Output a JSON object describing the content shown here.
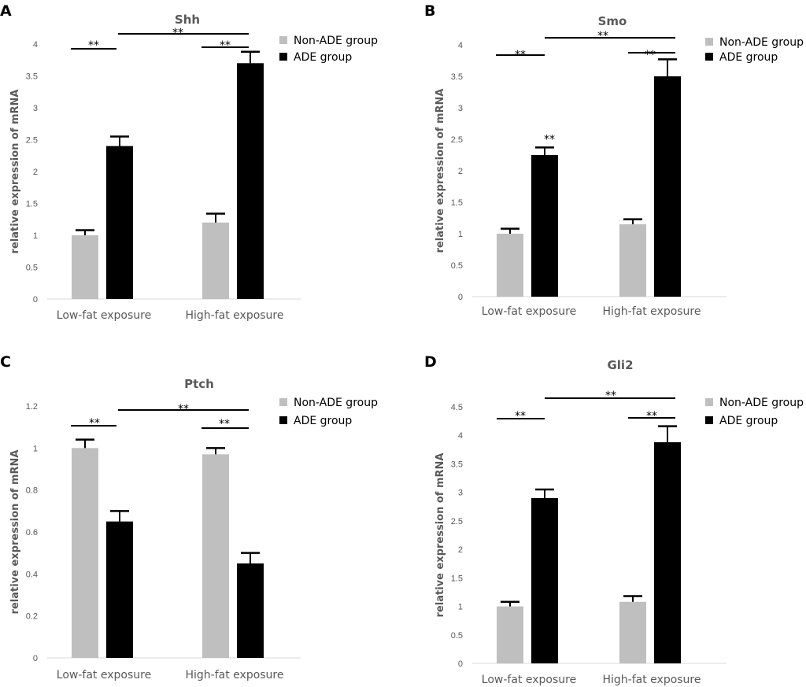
{
  "colors": {
    "non_ade": "#bfbfbf",
    "ade": "#000000",
    "text": "#595959",
    "axis": "#d9d9d9"
  },
  "chart_data": [
    {
      "type": "bar",
      "panel": "A",
      "title": "Shh",
      "ylabel": "relative expression of mRNA",
      "xlabel": "",
      "categories": [
        "Low-fat exposure",
        "High-fat exposure"
      ],
      "series": [
        {
          "name": "Non-ADE group",
          "values": [
            1.0,
            1.2
          ],
          "errors": [
            0.08,
            0.14
          ]
        },
        {
          "name": "ADE group",
          "values": [
            2.4,
            3.7
          ],
          "errors": [
            0.15,
            0.18
          ]
        }
      ],
      "ylim": [
        0,
        4
      ],
      "yticks": [
        "0",
        "0.5",
        "1",
        "1.5",
        "2",
        "2.5",
        "3",
        "3.5",
        "4"
      ],
      "legend": [
        "Non-ADE group",
        "ADE group"
      ],
      "significance": [
        {
          "label": "**",
          "between": "Low-fat exposure Non-ADE vs ADE"
        },
        {
          "label": "**",
          "between": "Low-fat vs High-fat exposure"
        },
        {
          "label": "**",
          "between": "High-fat exposure Non-ADE vs ADE"
        }
      ]
    },
    {
      "type": "bar",
      "panel": "B",
      "title": "Smo",
      "ylabel": "relative expression of mRNA",
      "xlabel": "",
      "categories": [
        "Low-fat exposure",
        "High-fat exposure"
      ],
      "series": [
        {
          "name": "Non-ADE group",
          "values": [
            1.0,
            1.15
          ],
          "errors": [
            0.08,
            0.08
          ]
        },
        {
          "name": "ADE group",
          "values": [
            2.25,
            3.5
          ],
          "errors": [
            0.12,
            0.27
          ]
        }
      ],
      "ylim": [
        0,
        4
      ],
      "yticks": [
        "0",
        "0.5",
        "1",
        "1.5",
        "2",
        "2.5",
        "3",
        "3.5",
        "4"
      ],
      "legend": [
        "Non-ADE group",
        "ADE group"
      ],
      "significance": [
        {
          "label": "**",
          "between": "Low-fat exposure Non-ADE vs ADE"
        },
        {
          "label": "**",
          "between": "Low-fat vs High-fat exposure"
        },
        {
          "label": "**",
          "between": "High-fat exposure Non-ADE vs ADE"
        },
        {
          "label": "**",
          "between": "Low-fat exposure ADE bar"
        }
      ]
    },
    {
      "type": "bar",
      "panel": "C",
      "title": "Ptch",
      "ylabel": "relative expression of mRNA",
      "xlabel": "",
      "categories": [
        "Low-fat exposure",
        "High-fat exposure"
      ],
      "series": [
        {
          "name": "Non-ADE group",
          "values": [
            1.0,
            0.97
          ],
          "errors": [
            0.04,
            0.03
          ]
        },
        {
          "name": "ADE group",
          "values": [
            0.65,
            0.45
          ],
          "errors": [
            0.05,
            0.05
          ]
        }
      ],
      "ylim": [
        0,
        1.2
      ],
      "yticks": [
        "0",
        "0.2",
        "0.4",
        "0.6",
        "0.8",
        "1",
        "1.2"
      ],
      "legend": [
        "Non-ADE group",
        "ADE group"
      ],
      "significance": [
        {
          "label": "**",
          "between": "Low-fat exposure Non-ADE vs ADE"
        },
        {
          "label": "**",
          "between": "Low-fat vs High-fat exposure"
        },
        {
          "label": "**",
          "between": "High-fat exposure Non-ADE vs ADE"
        }
      ]
    },
    {
      "type": "bar",
      "panel": "D",
      "title": "Gli2",
      "ylabel": "relative expression of mRNA",
      "xlabel": "",
      "categories": [
        "Low-fat exposure",
        "High-fat exposure"
      ],
      "series": [
        {
          "name": "Non-ADE group",
          "values": [
            1.0,
            1.08
          ],
          "errors": [
            0.08,
            0.1
          ]
        },
        {
          "name": "ADE group",
          "values": [
            2.9,
            3.88
          ],
          "errors": [
            0.15,
            0.28
          ]
        }
      ],
      "ylim": [
        0,
        4.5
      ],
      "yticks": [
        "0",
        "0.5",
        "1",
        "1.5",
        "2",
        "2.5",
        "3",
        "3.5",
        "4",
        "4.5"
      ],
      "legend": [
        "Non-ADE group",
        "ADE group"
      ],
      "significance": [
        {
          "label": "**",
          "between": "Low-fat exposure Non-ADE vs ADE"
        },
        {
          "label": "**",
          "between": "Low-fat vs High-fat exposure"
        },
        {
          "label": "**",
          "between": "High-fat exposure Non-ADE vs ADE"
        }
      ]
    }
  ]
}
